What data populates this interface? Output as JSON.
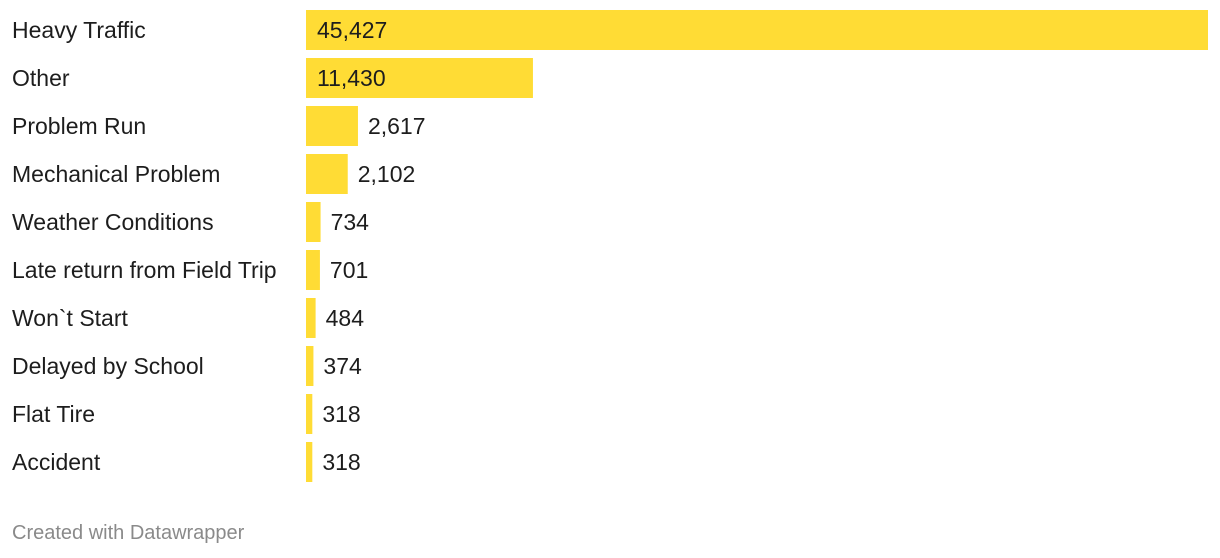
{
  "chart_data": {
    "type": "bar",
    "orientation": "horizontal",
    "categories": [
      "Heavy Traffic",
      "Other",
      "Problem Run",
      "Mechanical Problem",
      "Weather Conditions",
      "Late return from Field Trip",
      "Won`t Start",
      "Delayed by School",
      "Flat Tire",
      "Accident"
    ],
    "values": [
      45427,
      11430,
      2617,
      2102,
      734,
      701,
      484,
      374,
      318,
      318
    ],
    "value_labels": [
      "45,427",
      "11,430",
      "2,617",
      "2,102",
      "734",
      "701",
      "484",
      "374",
      "318",
      "318"
    ],
    "xlim": [
      0,
      45427
    ],
    "bar_color": "#ffdc35",
    "grid": false,
    "legend": "none"
  },
  "footer": {
    "credit": "Created with Datawrapper"
  }
}
